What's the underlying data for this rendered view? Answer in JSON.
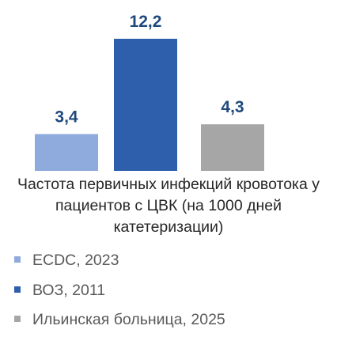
{
  "chart_data": {
    "type": "bar",
    "title_lines": [
      "Частота первичных инфекций кровотока у",
      "пациентов с ЦВК (на 1000 дней",
      "катетеризации)"
    ],
    "series": [
      {
        "name": "ECDC, 2023",
        "value": 3.4,
        "value_label": "3,4",
        "color": "#8faadc"
      },
      {
        "name": "ВОЗ, 2011",
        "value": 12.2,
        "value_label": "12,2",
        "color": "#2e5fac"
      },
      {
        "name": "Ильинская больница, 2025",
        "value": 4.3,
        "value_label": "4,3",
        "color": "#a6a6a6"
      }
    ],
    "ylim": [
      0,
      12.2
    ],
    "grid": false,
    "legend_position": "bottom-left",
    "value_label_color": "#1f497d"
  }
}
